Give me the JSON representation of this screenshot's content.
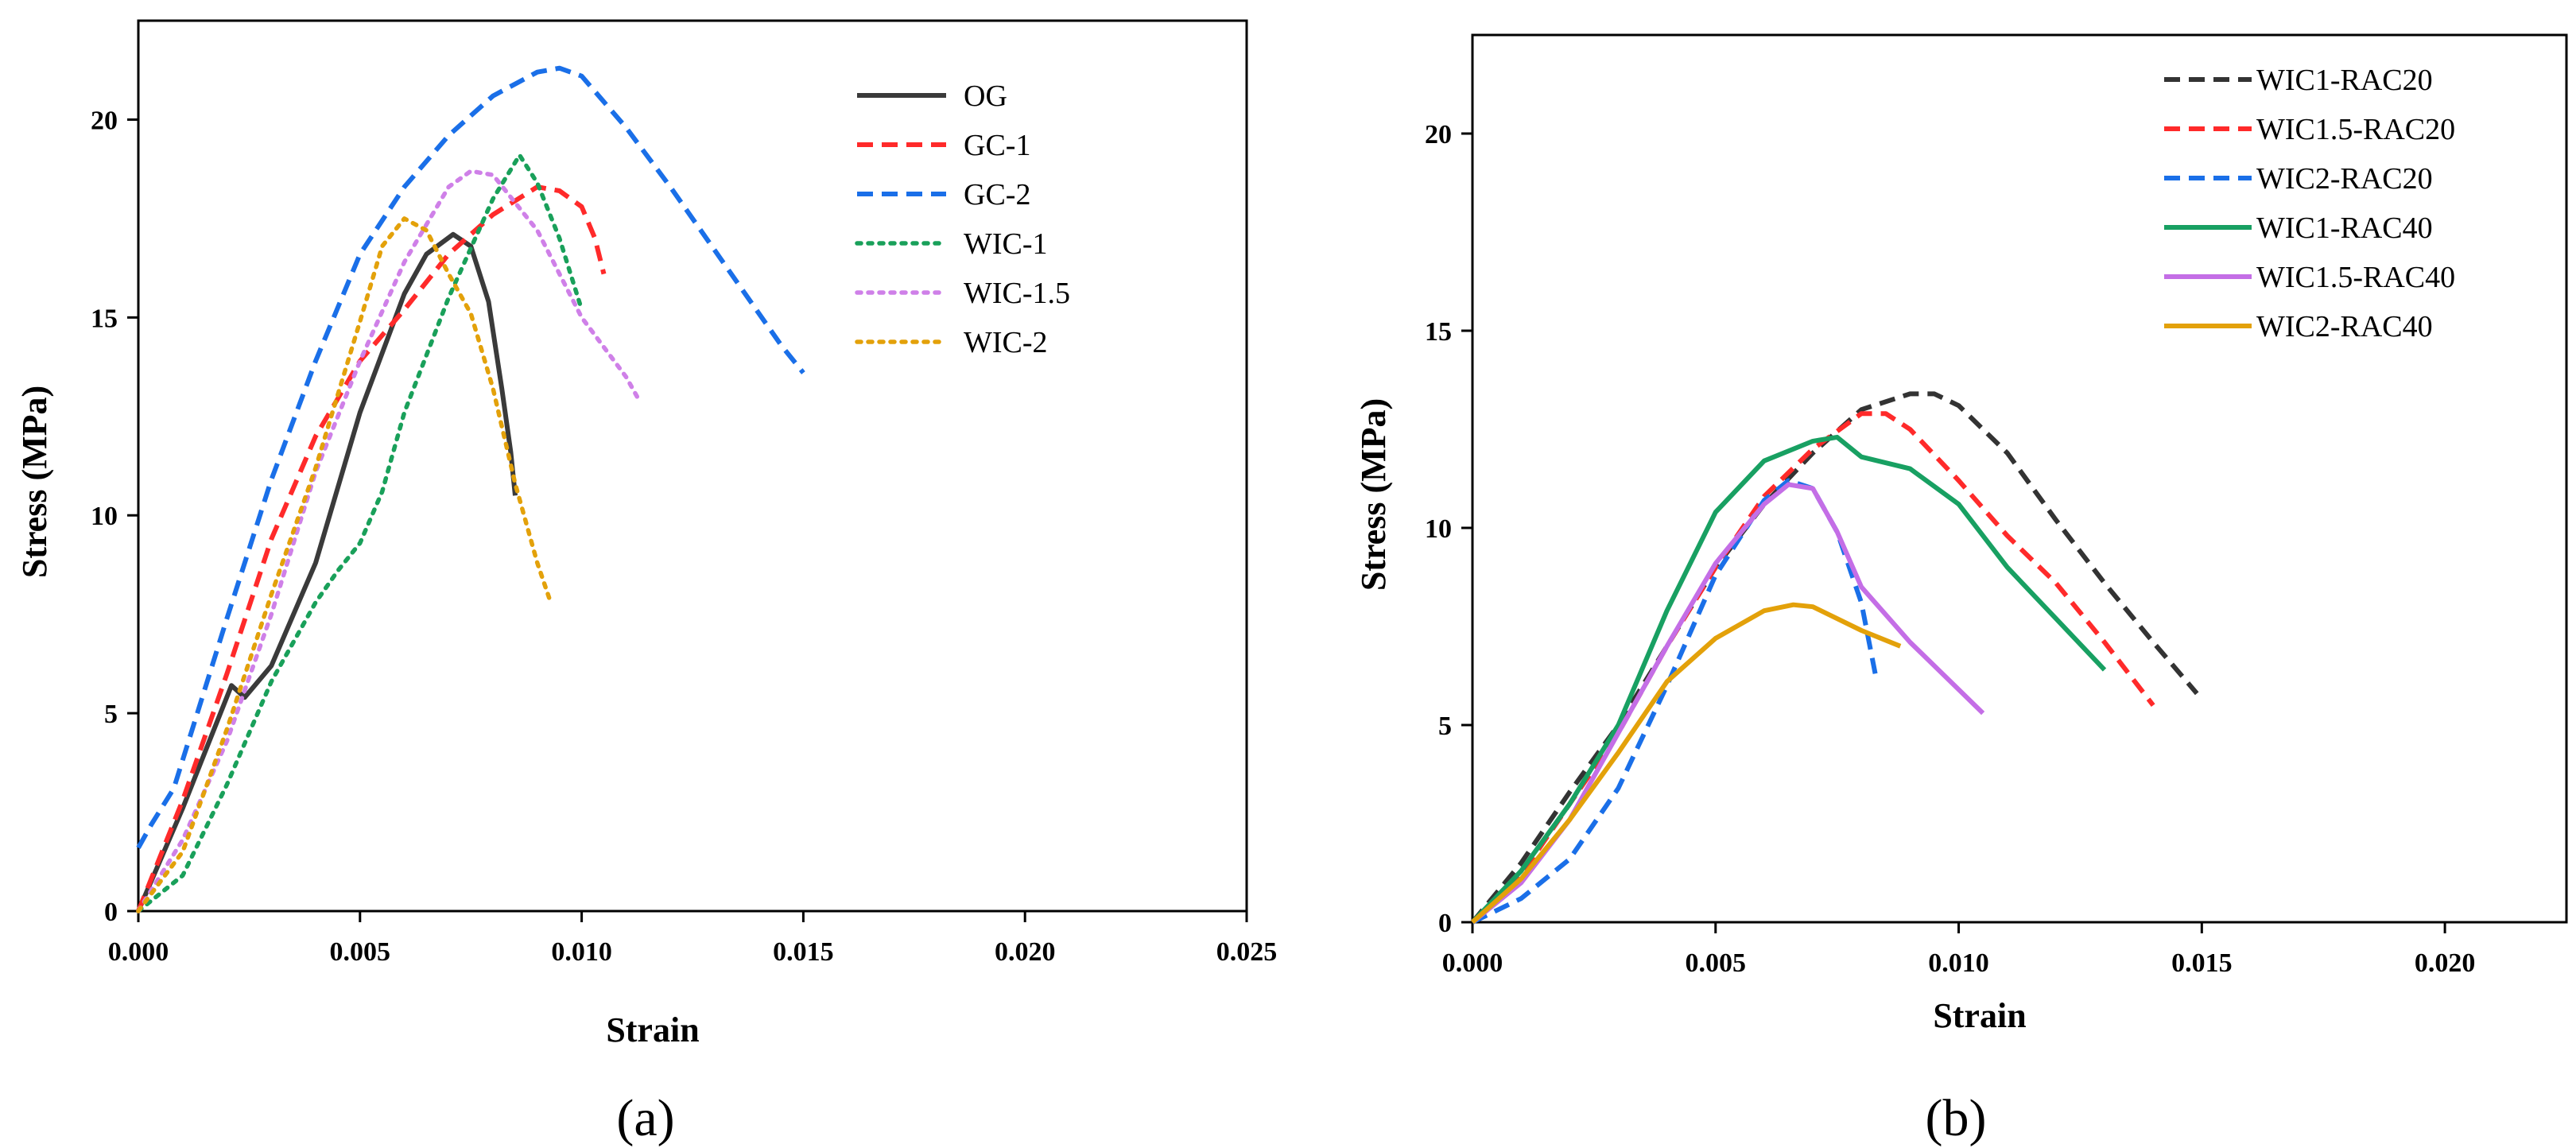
{
  "chart_data": [
    {
      "type": "line",
      "panel_label": "(a)",
      "xlabel": "Strain",
      "ylabel": "Stress (MPa)",
      "xlim": [
        0,
        0.025
      ],
      "ylim": [
        0,
        22.5
      ],
      "xticks": [
        0,
        0.005,
        0.01,
        0.015,
        0.02,
        0.025
      ],
      "xtick_labels": [
        "0.000",
        "0.005",
        "0.010",
        "0.015",
        "0.020",
        "0.025"
      ],
      "yticks": [
        0,
        5,
        10,
        15,
        20
      ],
      "ytick_labels": [
        "0",
        "5",
        "10",
        "15",
        "20"
      ],
      "legend_position": "top-right",
      "series": [
        {
          "name": "OG",
          "color": "#3a3a3a",
          "style": "solid",
          "points": [
            [
              0,
              0
            ],
            [
              0.001,
              2.6
            ],
            [
              0.0021,
              5.7
            ],
            [
              0.0024,
              5.4
            ],
            [
              0.003,
              6.2
            ],
            [
              0.004,
              8.8
            ],
            [
              0.005,
              12.6
            ],
            [
              0.006,
              15.6
            ],
            [
              0.0065,
              16.6
            ],
            [
              0.0071,
              17.1
            ],
            [
              0.0075,
              16.8
            ],
            [
              0.0079,
              15.4
            ],
            [
              0.0082,
              13.2
            ],
            [
              0.0084,
              11.6
            ],
            [
              0.0085,
              10.5
            ]
          ]
        },
        {
          "name": "GC-1",
          "color": "#ff2a2a",
          "style": "dashed",
          "points": [
            [
              0,
              0
            ],
            [
              0.001,
              2.8
            ],
            [
              0.002,
              6.0
            ],
            [
              0.003,
              9.4
            ],
            [
              0.004,
              12.0
            ],
            [
              0.005,
              13.9
            ],
            [
              0.006,
              15.2
            ],
            [
              0.007,
              16.6
            ],
            [
              0.008,
              17.6
            ],
            [
              0.009,
              18.3
            ],
            [
              0.0095,
              18.2
            ],
            [
              0.01,
              17.8
            ],
            [
              0.0103,
              17.0
            ],
            [
              0.0105,
              16.1
            ]
          ]
        },
        {
          "name": "GC-2",
          "color": "#1a6fe8",
          "style": "dashed",
          "points": [
            [
              0,
              1.6
            ],
            [
              0.0003,
              2.2
            ],
            [
              0.0008,
              3.1
            ],
            [
              0.002,
              7.4
            ],
            [
              0.003,
              10.9
            ],
            [
              0.004,
              13.9
            ],
            [
              0.005,
              16.6
            ],
            [
              0.006,
              18.3
            ],
            [
              0.007,
              19.6
            ],
            [
              0.008,
              20.6
            ],
            [
              0.009,
              21.2
            ],
            [
              0.0095,
              21.3
            ],
            [
              0.01,
              21.1
            ],
            [
              0.011,
              19.8
            ],
            [
              0.012,
              18.3
            ],
            [
              0.013,
              16.7
            ],
            [
              0.014,
              15.1
            ],
            [
              0.0145,
              14.3
            ],
            [
              0.015,
              13.6
            ]
          ]
        },
        {
          "name": "WIC-1",
          "color": "#19a05a",
          "style": "dotted",
          "points": [
            [
              0,
              0
            ],
            [
              0.001,
              0.9
            ],
            [
              0.002,
              3.2
            ],
            [
              0.003,
              5.8
            ],
            [
              0.004,
              7.8
            ],
            [
              0.0045,
              8.6
            ],
            [
              0.005,
              9.3
            ],
            [
              0.0055,
              10.6
            ],
            [
              0.006,
              12.6
            ],
            [
              0.007,
              15.5
            ],
            [
              0.008,
              18.0
            ],
            [
              0.0086,
              19.1
            ],
            [
              0.009,
              18.4
            ],
            [
              0.0095,
              17.0
            ],
            [
              0.01,
              15.2
            ]
          ]
        },
        {
          "name": "WIC-1.5",
          "color": "#cf80e8",
          "style": "dotted",
          "points": [
            [
              0,
              0
            ],
            [
              0.001,
              1.8
            ],
            [
              0.002,
              4.3
            ],
            [
              0.003,
              7.5
            ],
            [
              0.004,
              11.1
            ],
            [
              0.005,
              13.9
            ],
            [
              0.006,
              16.4
            ],
            [
              0.007,
              18.3
            ],
            [
              0.0075,
              18.7
            ],
            [
              0.008,
              18.6
            ],
            [
              0.009,
              17.2
            ],
            [
              0.01,
              15.0
            ],
            [
              0.011,
              13.5
            ],
            [
              0.0113,
              12.9
            ]
          ]
        },
        {
          "name": "WIC-2",
          "color": "#e3a10a",
          "style": "dotted",
          "points": [
            [
              0,
              0
            ],
            [
              0.001,
              1.5
            ],
            [
              0.002,
              4.6
            ],
            [
              0.003,
              8.0
            ],
            [
              0.004,
              11.2
            ],
            [
              0.005,
              14.9
            ],
            [
              0.0055,
              16.8
            ],
            [
              0.006,
              17.5
            ],
            [
              0.0065,
              17.2
            ],
            [
              0.007,
              16.1
            ],
            [
              0.0075,
              15.1
            ],
            [
              0.008,
              13.2
            ],
            [
              0.0085,
              10.8
            ],
            [
              0.009,
              8.8
            ],
            [
              0.0093,
              7.8
            ]
          ]
        }
      ]
    },
    {
      "type": "line",
      "panel_label": "(b)",
      "xlabel": "Strain",
      "ylabel": "Stress (MPa)",
      "xlim": [
        0,
        0.0225
      ],
      "ylim": [
        0,
        22.5
      ],
      "xticks": [
        0,
        0.005,
        0.01,
        0.015,
        0.02
      ],
      "xtick_labels": [
        "0.000",
        "0.005",
        "0.010",
        "0.015",
        "0.020"
      ],
      "yticks": [
        0,
        5,
        10,
        15,
        20
      ],
      "ytick_labels": [
        "0",
        "5",
        "10",
        "15",
        "20"
      ],
      "legend_position": "top-right",
      "series": [
        {
          "name": "WIC1-RAC20",
          "color": "#333333",
          "style": "dashed",
          "points": [
            [
              0,
              0
            ],
            [
              0.001,
              1.5
            ],
            [
              0.002,
              3.3
            ],
            [
              0.003,
              5.0
            ],
            [
              0.004,
              7.0
            ],
            [
              0.005,
              9.0
            ],
            [
              0.006,
              10.6
            ],
            [
              0.007,
              11.9
            ],
            [
              0.008,
              13.0
            ],
            [
              0.009,
              13.4
            ],
            [
              0.0095,
              13.4
            ],
            [
              0.01,
              13.1
            ],
            [
              0.011,
              11.9
            ],
            [
              0.012,
              10.2
            ],
            [
              0.013,
              8.6
            ],
            [
              0.014,
              7.1
            ],
            [
              0.0149,
              5.8
            ]
          ]
        },
        {
          "name": "WIC1.5-RAC20",
          "color": "#ff2a2a",
          "style": "dashed",
          "points": [
            [
              0,
              0
            ],
            [
              0.001,
              1.2
            ],
            [
              0.002,
              3.0
            ],
            [
              0.003,
              4.8
            ],
            [
              0.004,
              7.0
            ],
            [
              0.005,
              9.0
            ],
            [
              0.006,
              10.8
            ],
            [
              0.007,
              12.0
            ],
            [
              0.008,
              12.9
            ],
            [
              0.0085,
              12.9
            ],
            [
              0.009,
              12.5
            ],
            [
              0.01,
              11.2
            ],
            [
              0.011,
              9.8
            ],
            [
              0.012,
              8.6
            ],
            [
              0.013,
              7.1
            ],
            [
              0.014,
              5.5
            ]
          ]
        },
        {
          "name": "WIC2-RAC20",
          "color": "#1a6fe8",
          "style": "dashed",
          "points": [
            [
              0,
              0
            ],
            [
              0.001,
              0.6
            ],
            [
              0.002,
              1.6
            ],
            [
              0.003,
              3.4
            ],
            [
              0.004,
              6.0
            ],
            [
              0.005,
              8.8
            ],
            [
              0.006,
              10.7
            ],
            [
              0.0065,
              11.2
            ],
            [
              0.007,
              11.0
            ],
            [
              0.0075,
              9.9
            ],
            [
              0.008,
              8.1
            ],
            [
              0.0083,
              6.2
            ]
          ]
        },
        {
          "name": "WIC1-RAC40",
          "color": "#18a062",
          "style": "solid",
          "points": [
            [
              0,
              0
            ],
            [
              0.001,
              1.3
            ],
            [
              0.002,
              3.0
            ],
            [
              0.003,
              5.0
            ],
            [
              0.004,
              7.9
            ],
            [
              0.005,
              10.4
            ],
            [
              0.006,
              11.7
            ],
            [
              0.007,
              12.2
            ],
            [
              0.0075,
              12.3
            ],
            [
              0.008,
              11.8
            ],
            [
              0.009,
              11.5
            ],
            [
              0.01,
              10.6
            ],
            [
              0.011,
              9.0
            ],
            [
              0.012,
              7.7
            ],
            [
              0.013,
              6.4
            ]
          ]
        },
        {
          "name": "WIC1.5-RAC40",
          "color": "#c46ee6",
          "style": "solid",
          "points": [
            [
              0,
              0
            ],
            [
              0.001,
              1.0
            ],
            [
              0.002,
              2.6
            ],
            [
              0.003,
              4.8
            ],
            [
              0.004,
              7.0
            ],
            [
              0.005,
              9.1
            ],
            [
              0.006,
              10.6
            ],
            [
              0.0065,
              11.1
            ],
            [
              0.007,
              11.0
            ],
            [
              0.0075,
              9.9
            ],
            [
              0.008,
              8.5
            ],
            [
              0.009,
              7.1
            ],
            [
              0.01,
              5.9
            ],
            [
              0.0105,
              5.3
            ]
          ]
        },
        {
          "name": "WIC2-RAC40",
          "color": "#e3a10a",
          "style": "solid",
          "points": [
            [
              0,
              0
            ],
            [
              0.001,
              1.1
            ],
            [
              0.002,
              2.6
            ],
            [
              0.003,
              4.3
            ],
            [
              0.004,
              6.1
            ],
            [
              0.005,
              7.2
            ],
            [
              0.006,
              7.9
            ],
            [
              0.0066,
              8.05
            ],
            [
              0.007,
              8.0
            ],
            [
              0.008,
              7.4
            ],
            [
              0.0088,
              7.0
            ]
          ]
        }
      ]
    }
  ]
}
